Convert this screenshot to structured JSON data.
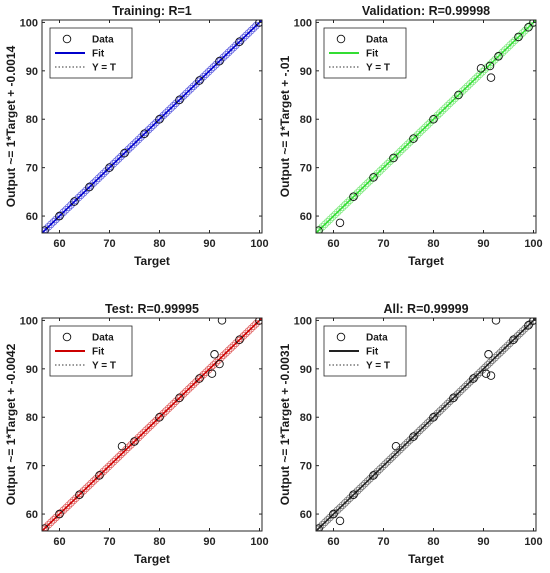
{
  "chart_data": [
    {
      "type": "scatter",
      "title": "Training: R=1",
      "xlabel": "Target",
      "ylabel": "Output ~= 1*Target + -0.0014",
      "xlim": [
        56.5,
        100.5
      ],
      "ylim": [
        56.5,
        100.5
      ],
      "xticks": [
        "60",
        "70",
        "80",
        "90",
        "100"
      ],
      "yticks": [
        "60",
        "70",
        "80",
        "90",
        "100"
      ],
      "grid": false,
      "legend_position": "top-left",
      "legend": [
        "Data",
        "Fit",
        "Y = T"
      ],
      "fit_color": "#0000cc",
      "fit": {
        "slope": 1,
        "intercept": -0.0014
      },
      "points": [
        [
          57,
          57
        ],
        [
          60,
          60
        ],
        [
          63,
          63
        ],
        [
          66,
          66
        ],
        [
          70,
          70
        ],
        [
          73,
          73
        ],
        [
          77,
          77
        ],
        [
          80,
          80
        ],
        [
          84,
          84
        ],
        [
          88,
          88
        ],
        [
          92,
          92
        ],
        [
          96,
          96
        ],
        [
          100,
          100
        ]
      ]
    },
    {
      "type": "scatter",
      "title": "Validation: R=0.99998",
      "xlabel": "Target",
      "ylabel": "Output ~= 1*Target + -.01",
      "xlim": [
        56.5,
        100.5
      ],
      "ylim": [
        56.5,
        100.5
      ],
      "xticks": [
        "60",
        "70",
        "80",
        "90",
        "100"
      ],
      "yticks": [
        "60",
        "70",
        "80",
        "90",
        "100"
      ],
      "grid": false,
      "legend_position": "top-left",
      "legend": [
        "Data",
        "Fit",
        "Y = T"
      ],
      "fit_color": "#33dd33",
      "fit": {
        "slope": 1,
        "intercept": -0.01
      },
      "points": [
        [
          57,
          57
        ],
        [
          61.3,
          58.6
        ],
        [
          64,
          64
        ],
        [
          68,
          68
        ],
        [
          72,
          72
        ],
        [
          76,
          76
        ],
        [
          80,
          80
        ],
        [
          85,
          85
        ],
        [
          89.5,
          90.5
        ],
        [
          91.3,
          91
        ],
        [
          91.5,
          88.6
        ],
        [
          93,
          93
        ],
        [
          97,
          97
        ],
        [
          99,
          99
        ],
        [
          100,
          100
        ]
      ]
    },
    {
      "type": "scatter",
      "title": "Test: R=0.99995",
      "xlabel": "Target",
      "ylabel": "Output ~= 1*Target + -0.0042",
      "xlim": [
        56.5,
        100.5
      ],
      "ylim": [
        56.5,
        100.5
      ],
      "xticks": [
        "60",
        "70",
        "80",
        "90",
        "100"
      ],
      "yticks": [
        "60",
        "70",
        "80",
        "90",
        "100"
      ],
      "grid": false,
      "legend_position": "top-left",
      "legend": [
        "Data",
        "Fit",
        "Y = T"
      ],
      "fit_color": "#cc0000",
      "fit": {
        "slope": 1,
        "intercept": -0.0042
      },
      "points": [
        [
          57,
          57
        ],
        [
          60,
          60
        ],
        [
          64,
          64
        ],
        [
          68,
          68
        ],
        [
          72.5,
          74
        ],
        [
          75,
          75
        ],
        [
          80,
          80
        ],
        [
          84,
          84
        ],
        [
          88,
          88
        ],
        [
          90.5,
          89
        ],
        [
          91,
          93
        ],
        [
          92,
          91
        ],
        [
          92.5,
          100
        ],
        [
          96,
          96
        ],
        [
          100,
          100
        ]
      ]
    },
    {
      "type": "scatter",
      "title": "All: R=0.99999",
      "xlabel": "Target",
      "ylabel": "Output ~= 1*Target + -0.0031",
      "xlim": [
        56.5,
        100.5
      ],
      "ylim": [
        56.5,
        100.5
      ],
      "xticks": [
        "60",
        "70",
        "80",
        "90",
        "100"
      ],
      "yticks": [
        "60",
        "70",
        "80",
        "90",
        "100"
      ],
      "grid": false,
      "legend_position": "top-left",
      "legend": [
        "Data",
        "Fit",
        "Y = T"
      ],
      "fit_color": "#222222",
      "fit": {
        "slope": 1,
        "intercept": -0.0031
      },
      "points": [
        [
          57,
          57
        ],
        [
          60,
          60
        ],
        [
          61.3,
          58.6
        ],
        [
          64,
          64
        ],
        [
          68,
          68
        ],
        [
          72.5,
          74
        ],
        [
          76,
          76
        ],
        [
          80,
          80
        ],
        [
          84,
          84
        ],
        [
          88,
          88
        ],
        [
          90.5,
          89
        ],
        [
          91,
          93
        ],
        [
          91.5,
          88.6
        ],
        [
          92.5,
          100
        ],
        [
          96,
          96
        ],
        [
          99,
          99
        ],
        [
          100,
          100
        ]
      ]
    }
  ]
}
